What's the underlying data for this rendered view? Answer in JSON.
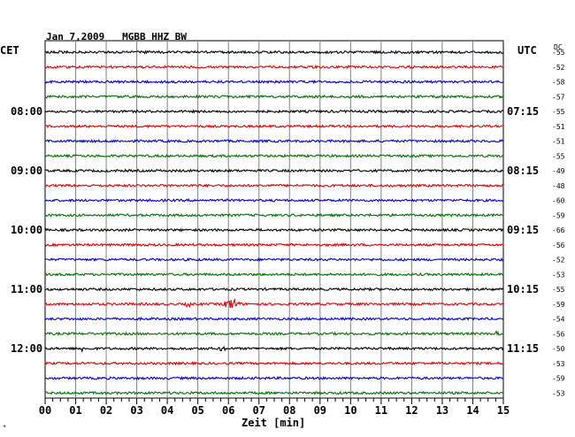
{
  "header": {
    "title": "Jan 7,2009   MGBB HHZ BW",
    "left_zone": "CET",
    "right_zone": "UTC",
    "dc_label": "DC"
  },
  "footer": {
    "xlabel": "Zeit [min]",
    "corner_mark": "*"
  },
  "colors": {
    "cycle": [
      "#000000",
      "#e00000",
      "#0000d0",
      "#007000"
    ],
    "grid": "#808080",
    "frame": "#000000"
  },
  "chart_data": {
    "type": "line",
    "title": "Jan 7,2009   MGBB HHZ BW",
    "xlabel": "Zeit [min]",
    "xlim": [
      0,
      15
    ],
    "x_ticks": [
      "00",
      "01",
      "02",
      "03",
      "04",
      "05",
      "06",
      "07",
      "08",
      "09",
      "10",
      "11",
      "12",
      "13",
      "14",
      "15"
    ],
    "grid": true,
    "traces_per_hour": 4,
    "trace_minutes": 15,
    "left_time_labels": [
      {
        "trace_index": 4,
        "label": "08:00"
      },
      {
        "trace_index": 8,
        "label": "09:00"
      },
      {
        "trace_index": 12,
        "label": "10:00"
      },
      {
        "trace_index": 16,
        "label": "11:00"
      },
      {
        "trace_index": 20,
        "label": "12:00"
      }
    ],
    "right_time_labels": [
      {
        "trace_index": 4,
        "label": "07:15"
      },
      {
        "trace_index": 8,
        "label": "08:15"
      },
      {
        "trace_index": 12,
        "label": "09:15"
      },
      {
        "trace_index": 16,
        "label": "10:15"
      },
      {
        "trace_index": 20,
        "label": "11:15"
      }
    ],
    "dc_offsets": [
      -55,
      -52,
      -58,
      -57,
      -55,
      -51,
      -51,
      -55,
      -49,
      -48,
      -60,
      -59,
      -66,
      -56,
      -52,
      -53,
      -55,
      -59,
      -54,
      -56,
      -50,
      -53,
      -59,
      -53
    ],
    "events": [
      {
        "trace_index": 17,
        "minute": 6.1,
        "amplitude": "large"
      },
      {
        "trace_index": 17,
        "minute": 4.7,
        "amplitude": "small"
      },
      {
        "trace_index": 19,
        "minute": 14.8,
        "amplitude": "small"
      },
      {
        "trace_index": 20,
        "minute": 5.8,
        "amplitude": "small"
      },
      {
        "trace_index": 20,
        "minute": 1.2,
        "amplitude": "small"
      }
    ]
  }
}
